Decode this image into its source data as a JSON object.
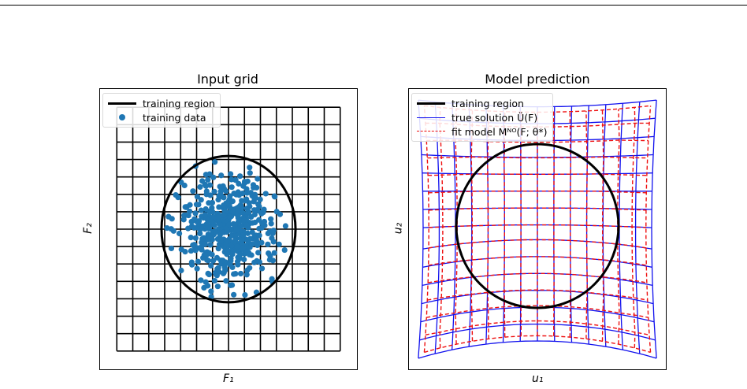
{
  "colors": {
    "grid": "#000000",
    "training_region": "#000000",
    "training_data": "#1f77b4",
    "true_solution": "#1010ee",
    "fit_model": "#ee1010"
  },
  "chart_data": [
    {
      "type": "scatter",
      "title": "Input grid",
      "xlabel": "F₁",
      "ylabel": "F₂",
      "xlim": [
        -2.3,
        2.3
      ],
      "ylim": [
        -2.3,
        2.3
      ],
      "grid_lines": 15,
      "grid_range": [
        -2.0,
        2.0
      ],
      "grid": true,
      "legend_position": "top-left",
      "legend": [
        "training region",
        "training data"
      ],
      "training_region": {
        "center": [
          0,
          0
        ],
        "radius": 1.2
      },
      "training_data": {
        "count": 500,
        "center": [
          0,
          0
        ],
        "spread": 0.45,
        "max_radius": 1.2
      }
    },
    {
      "type": "line",
      "title": "Model prediction",
      "xlabel": "u₁",
      "ylabel": "u₂",
      "grid": false,
      "legend_position": "top-left",
      "legend": [
        "training region",
        "true solution Ü(F)",
        "fit model Mᴺᴼ(F; θ*)"
      ],
      "training_region": {
        "center": [
          0,
          0
        ],
        "radius": 1.2
      },
      "true_solution_grid_lines": 15,
      "fit_model_grid_lines": 15
    }
  ]
}
